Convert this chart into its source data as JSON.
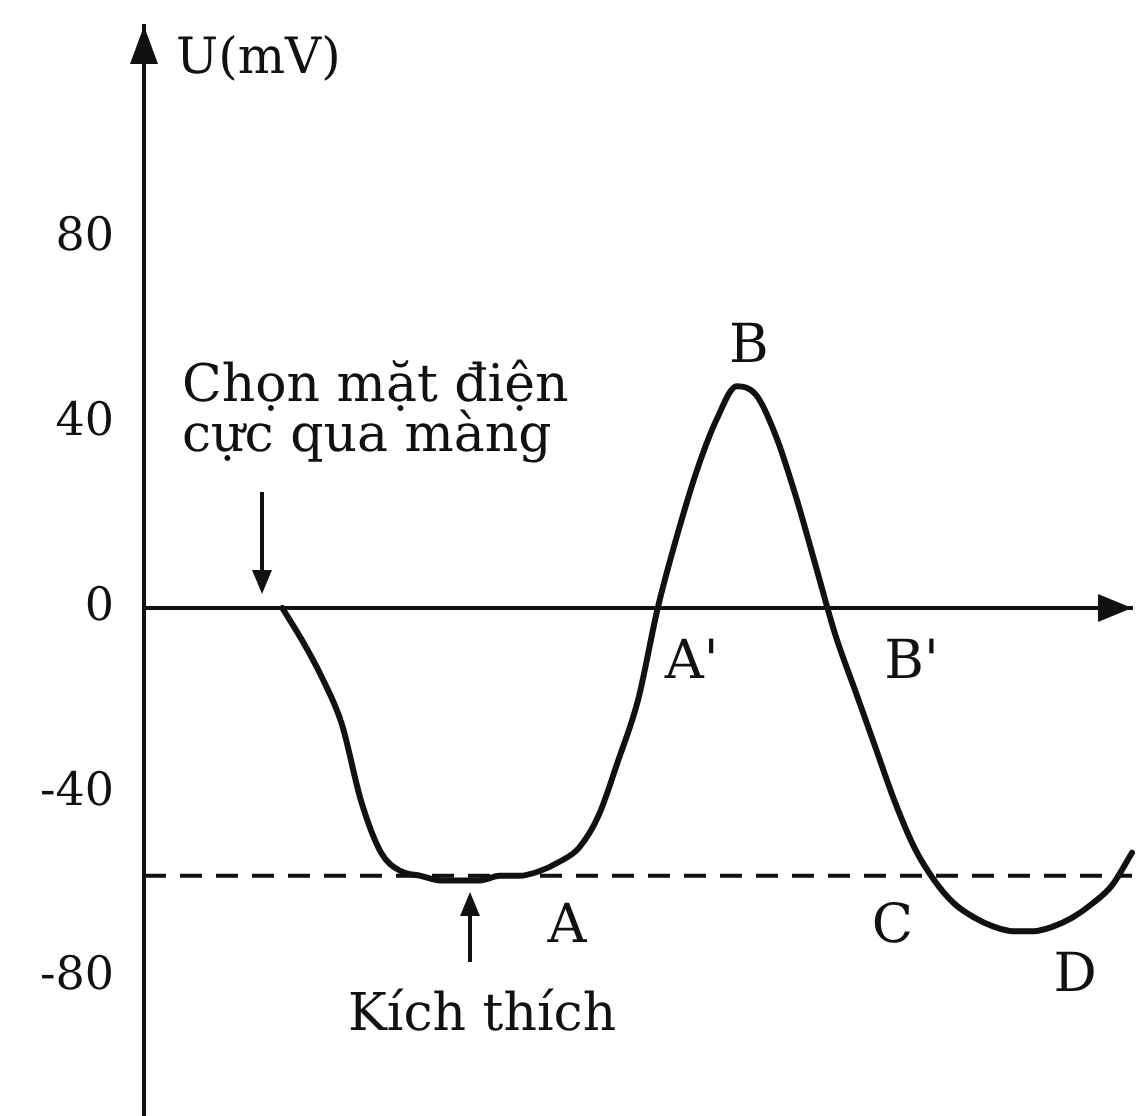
{
  "chart_data": {
    "type": "line",
    "ylabel": "U(mV)",
    "categories": [
      null,
      null,
      null,
      null,
      null,
      null,
      null,
      null,
      null,
      null,
      null,
      null,
      null,
      null,
      null,
      null,
      null,
      null,
      null,
      null,
      null,
      null,
      null,
      null,
      null,
      null,
      null,
      null,
      null,
      null,
      null,
      null,
      null,
      null,
      null,
      null,
      null,
      null,
      null,
      null,
      null,
      null,
      null,
      null,
      null,
      null,
      null,
      null,
      null,
      null,
      null
    ],
    "series": [
      {
        "color": "#111111",
        "values": [
          null,
          null,
          null,
          null,
          null,
          null,
          null,
          0,
          -7,
          -15,
          -25,
          -42,
          -53,
          -57,
          -58,
          -59,
          -59,
          -59,
          -58,
          -58,
          -57,
          -55,
          -52,
          -45,
          -33,
          -20,
          0,
          16,
          30,
          41,
          48,
          46,
          37,
          24,
          9,
          -6,
          -18,
          -30,
          -42,
          -52,
          -59,
          -64,
          -67,
          -69,
          -70,
          -70,
          -69,
          -67,
          -64,
          -60,
          -53
        ],
        "value_labels": [
          null,
          null,
          null,
          null,
          null,
          null,
          null,
          null,
          null,
          null,
          null,
          null,
          null,
          null,
          null,
          null,
          null,
          null,
          null,
          null,
          null,
          "A",
          null,
          null,
          null,
          null,
          "A'",
          null,
          null,
          null,
          "B",
          null,
          null,
          null,
          null,
          "B'",
          null,
          null,
          null,
          null,
          "C",
          null,
          null,
          null,
          null,
          "D",
          null,
          null,
          null,
          null,
          null
        ]
      }
    ],
    "ylim": [
      -110,
      126
    ],
    "yticks": [
      -80,
      -40,
      0,
      40,
      80
    ],
    "tick_labels": "y",
    "line_style": "solid",
    "ref_lines": [
      {
        "axis": "y",
        "value": -58,
        "line_style": "dashed",
        "color": "#111111"
      }
    ],
    "annotations": [
      "Chọn mặt điện cực qua màng",
      "Kích thích"
    ]
  }
}
